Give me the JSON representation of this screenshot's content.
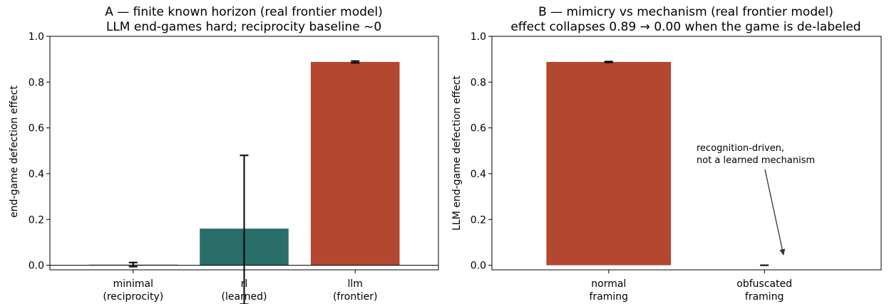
{
  "chart_data": [
    {
      "type": "bar",
      "title_lines": [
        "A — finite known horizon (real frontier model)",
        "LLM end-games hard; reciprocity baseline ~0"
      ],
      "xlabel": "",
      "ylabel": "end-game defection effect",
      "ylim": [
        -0.02,
        1.0
      ],
      "yticks": [
        "0.0",
        "0.2",
        "0.4",
        "0.6",
        "0.8",
        "1.0"
      ],
      "yticks_values": [
        0.0,
        0.2,
        0.4,
        0.6,
        0.8,
        1.0
      ],
      "zero_line": true,
      "categories": [
        {
          "lines": [
            "minimal",
            "(reciprocity)"
          ]
        },
        {
          "lines": [
            "rl",
            "(learned)"
          ]
        },
        {
          "lines": [
            "llm",
            "(frontier)"
          ]
        }
      ],
      "values": [
        0.003,
        0.16,
        0.888
      ],
      "error_low": [
        -0.006,
        -0.17,
        0.884
      ],
      "error_high": [
        0.012,
        0.48,
        0.892
      ],
      "colors": [
        "#8c8c8c",
        "#2a6e6a",
        "#b34730"
      ]
    },
    {
      "type": "bar",
      "title_lines": [
        "B — mimicry vs mechanism (real frontier model)",
        "effect collapses 0.89 → 0.00 when the game is de-labeled"
      ],
      "xlabel": "",
      "ylabel": "LLM end-game defection effect",
      "ylim": [
        -0.02,
        1.0
      ],
      "yticks": [
        "0.0",
        "0.2",
        "0.4",
        "0.6",
        "0.8",
        "1.0"
      ],
      "yticks_values": [
        0.0,
        0.2,
        0.4,
        0.6,
        0.8,
        1.0
      ],
      "zero_line": false,
      "categories": [
        {
          "lines": [
            "normal",
            "framing"
          ]
        },
        {
          "lines": [
            "obfuscated",
            "framing"
          ]
        }
      ],
      "values": [
        0.888,
        0.0
      ],
      "error_low": [
        0.886,
        0.0
      ],
      "error_high": [
        0.89,
        0.0
      ],
      "colors": [
        "#b34730",
        "#b34730"
      ],
      "annotation": {
        "lines": [
          "recognition-driven,",
          "not a learned mechanism"
        ],
        "points_to_category": 1,
        "points_to_value": 0.0
      }
    }
  ]
}
